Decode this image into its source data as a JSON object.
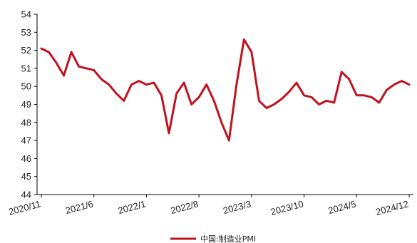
{
  "chart_data": {
    "type": "line",
    "title": "",
    "xlabel": "",
    "ylabel": "",
    "ylim": [
      44,
      54
    ],
    "yticks": [
      44,
      45,
      46,
      47,
      48,
      49,
      50,
      51,
      52,
      53,
      54
    ],
    "x_tick_labels": [
      "2020/11",
      "2021/6",
      "2022/1",
      "2022/8",
      "2023/3",
      "2023/10",
      "2024/5",
      "2024/12"
    ],
    "x": [
      "2020/11",
      "2020/12",
      "2021/1",
      "2021/2",
      "2021/3",
      "2021/4",
      "2021/5",
      "2021/6",
      "2021/7",
      "2021/8",
      "2021/9",
      "2021/10",
      "2021/11",
      "2021/12",
      "2022/1",
      "2022/2",
      "2022/3",
      "2022/4",
      "2022/5",
      "2022/6",
      "2022/7",
      "2022/8",
      "2022/9",
      "2022/10",
      "2022/11",
      "2022/12",
      "2023/1",
      "2023/2",
      "2023/3",
      "2023/4",
      "2023/5",
      "2023/6",
      "2023/7",
      "2023/8",
      "2023/9",
      "2023/10",
      "2023/11",
      "2023/12",
      "2024/1",
      "2024/2",
      "2024/3",
      "2024/4",
      "2024/5",
      "2024/6",
      "2024/7",
      "2024/8",
      "2024/9",
      "2024/10",
      "2024/11",
      "2024/12"
    ],
    "series": [
      {
        "name": "中国:制造业PMI",
        "color": "#c0121f",
        "values": [
          52.1,
          51.9,
          51.3,
          50.6,
          51.9,
          51.1,
          51.0,
          50.9,
          50.4,
          50.1,
          49.6,
          49.2,
          50.1,
          50.3,
          50.1,
          50.2,
          49.5,
          47.4,
          49.6,
          50.2,
          49.0,
          49.4,
          50.1,
          49.2,
          48.0,
          47.0,
          50.1,
          52.6,
          51.9,
          49.2,
          48.8,
          49.0,
          49.3,
          49.7,
          50.2,
          49.5,
          49.4,
          49.0,
          49.2,
          49.1,
          50.8,
          50.4,
          49.5,
          49.5,
          49.4,
          49.1,
          49.8,
          50.1,
          50.3,
          50.1
        ]
      }
    ],
    "grid": false,
    "legend_position": "bottom-center"
  }
}
